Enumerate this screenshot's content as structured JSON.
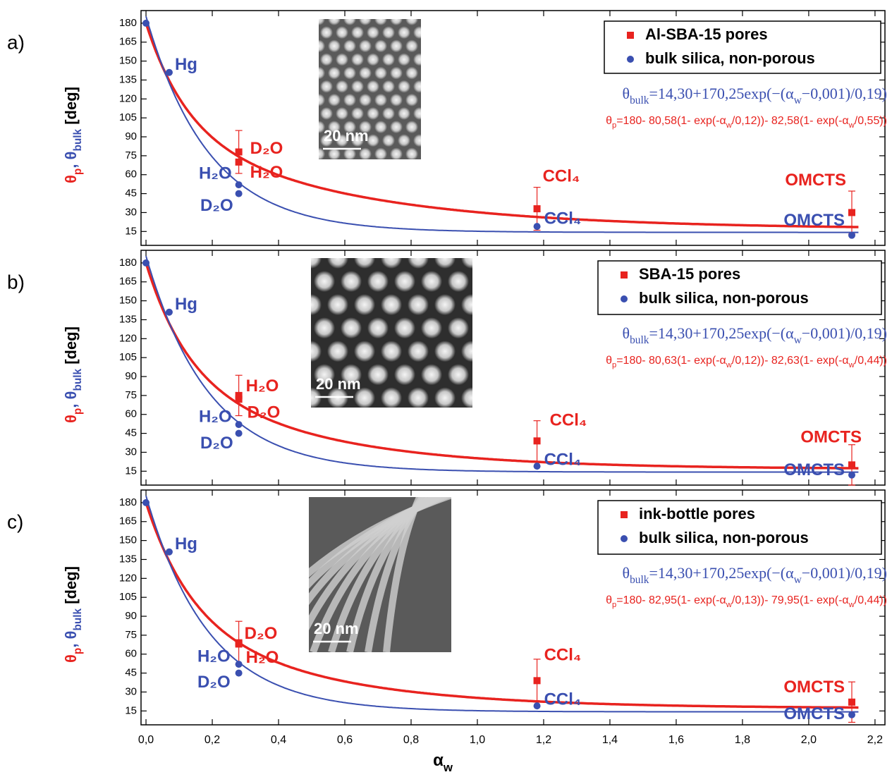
{
  "chart_data": [
    {
      "type": "scatter",
      "panel_label": "a)",
      "inset_label": "20 nm",
      "y_label": [
        {
          "text": "θ",
          "color": "#e8231f"
        },
        {
          "text": "p",
          "color": "#e8231f",
          "sub": true
        },
        {
          "text": ", θ",
          "color": "#3a4fb0"
        },
        {
          "text": "bulk",
          "color": "#3a4fb0",
          "sub": true
        },
        {
          "text": " [deg]",
          "color": "#000000"
        }
      ],
      "xlim": [
        -0.015,
        2.23
      ],
      "ylim": [
        4,
        190
      ],
      "yticks": [
        15,
        30,
        45,
        60,
        75,
        90,
        105,
        120,
        135,
        150,
        165,
        180
      ],
      "series": [
        {
          "name": "Al-SBA-15 pores",
          "color": "#e8231f",
          "marker": "square",
          "x": [
            0.28,
            0.28,
            1.18,
            2.13
          ],
          "values": [
            78,
            70,
            33,
            30
          ],
          "errors": [
            17,
            null,
            17,
            17
          ],
          "point_labels": [
            "D₂O",
            "H₂O",
            "CCl₄",
            "OMCTS"
          ],
          "formula": [
            "θ",
            {
              "text": "p",
              "sub": true
            },
            "=",
            180,
            "- ",
            {
              "value": 80.58,
              "label": "80,58"
            },
            "(1- exp(-α",
            {
              "text": "w",
              "sub": true
            },
            "/",
            {
              "value": 0.12,
              "label": "0,12"
            },
            "))- ",
            {
              "value": 82.58,
              "label": "82,58"
            },
            "(1- exp(-α",
            {
              "text": "w",
              "sub": true
            },
            "/",
            {
              "value": 0.55,
              "label": "0,55"
            },
            "))"
          ]
        },
        {
          "name": "bulk silica, non-porous",
          "color": "#3a4fb0",
          "marker": "circle",
          "x": [
            0.0,
            0.07,
            0.28,
            0.28,
            1.18,
            2.13
          ],
          "values": [
            180,
            141,
            52,
            45,
            19,
            12
          ],
          "point_labels": [
            null,
            "Hg",
            "H₂O",
            "D₂O",
            "CCl₄",
            "OMCTS"
          ],
          "formula": [
            "θ",
            {
              "text": "bulk",
              "sub": true
            },
            "=",
            {
              "value": 14.3,
              "label": "14,30"
            },
            "+",
            {
              "value": 170.25,
              "label": "170,25"
            },
            "exp(−(α",
            {
              "text": "w",
              "sub": true
            },
            "−",
            {
              "value": 0.001,
              "label": "0,001"
            },
            ")/",
            {
              "value": 0.19,
              "label": "0,19"
            },
            ")"
          ]
        }
      ]
    },
    {
      "type": "scatter",
      "panel_label": "b)",
      "inset_label": "20 nm",
      "y_label": [
        {
          "text": "θ",
          "color": "#e8231f"
        },
        {
          "text": "p",
          "color": "#e8231f",
          "sub": true
        },
        {
          "text": ", θ",
          "color": "#3a4fb0"
        },
        {
          "text": "bulk",
          "color": "#3a4fb0",
          "sub": true
        },
        {
          "text": " [deg]",
          "color": "#000000"
        }
      ],
      "xlim": [
        -0.015,
        2.23
      ],
      "ylim": [
        4,
        190
      ],
      "yticks": [
        15,
        30,
        45,
        60,
        75,
        90,
        105,
        120,
        135,
        150,
        165,
        180
      ],
      "series": [
        {
          "name": "SBA-15 pores",
          "color": "#e8231f",
          "marker": "square",
          "x": [
            0.28,
            0.28,
            1.18,
            2.13
          ],
          "values": [
            75,
            72,
            39,
            20
          ],
          "errors": [
            16,
            null,
            16,
            16
          ],
          "point_labels": [
            "H₂O",
            "D₂O",
            "CCl₄",
            "OMCTS"
          ],
          "formula": [
            "θ",
            {
              "text": "p",
              "sub": true
            },
            "=",
            180,
            "- ",
            {
              "value": 80.63,
              "label": "80,63"
            },
            "(1- exp(-α",
            {
              "text": "w",
              "sub": true
            },
            "/",
            {
              "value": 0.12,
              "label": "0,12"
            },
            "))- ",
            {
              "value": 82.63,
              "label": "82,63"
            },
            "(1- exp(-α",
            {
              "text": "w",
              "sub": true
            },
            "/",
            {
              "value": 0.44,
              "label": "0,44"
            },
            "))"
          ]
        },
        {
          "name": "bulk silica, non-porous",
          "color": "#3a4fb0",
          "marker": "circle",
          "x": [
            0.0,
            0.07,
            0.28,
            0.28,
            1.18,
            2.13
          ],
          "values": [
            180,
            141,
            52,
            45,
            19,
            12
          ],
          "point_labels": [
            null,
            "Hg",
            "H₂O",
            "D₂O",
            "CCl₄",
            "OMCTS"
          ],
          "formula": [
            "θ",
            {
              "text": "bulk",
              "sub": true
            },
            "=",
            {
              "value": 14.3,
              "label": "14,30"
            },
            "+",
            {
              "value": 170.25,
              "label": "170,25"
            },
            "exp(−(α",
            {
              "text": "w",
              "sub": true
            },
            "−",
            {
              "value": 0.001,
              "label": "0,001"
            },
            ")/",
            {
              "value": 0.19,
              "label": "0,19"
            },
            ")"
          ]
        }
      ]
    },
    {
      "type": "scatter",
      "panel_label": "c)",
      "inset_label": "20 nm",
      "y_label": [
        {
          "text": "θ",
          "color": "#e8231f"
        },
        {
          "text": "p",
          "color": "#e8231f",
          "sub": true
        },
        {
          "text": ", θ",
          "color": "#3a4fb0"
        },
        {
          "text": "bulk",
          "color": "#3a4fb0",
          "sub": true
        },
        {
          "text": " [deg]",
          "color": "#000000"
        }
      ],
      "x_label": [
        {
          "text": "α"
        },
        {
          "text": "w",
          "sub": true
        }
      ],
      "xlim": [
        -0.015,
        2.23
      ],
      "ylim": [
        4,
        190
      ],
      "yticks": [
        15,
        30,
        45,
        60,
        75,
        90,
        105,
        120,
        135,
        150,
        165,
        180
      ],
      "xticks": [
        {
          "value": 0,
          "label": "0,0"
        },
        {
          "value": 0.2,
          "label": "0,2"
        },
        {
          "value": 0.4,
          "label": "0,4"
        },
        {
          "value": 0.6,
          "label": "0,6"
        },
        {
          "value": 0.8,
          "label": "0,8"
        },
        {
          "value": 1.0,
          "label": "1,0"
        },
        {
          "value": 1.2,
          "label": "1,2"
        },
        {
          "value": 1.4,
          "label": "1,4"
        },
        {
          "value": 1.6,
          "label": "1,6"
        },
        {
          "value": 1.8,
          "label": "1,8"
        },
        {
          "value": 2.0,
          "label": "2,0"
        },
        {
          "value": 2.2,
          "label": "2,2"
        }
      ],
      "series": [
        {
          "name": "ink-bottle pores",
          "color": "#e8231f",
          "marker": "square",
          "x": [
            0.28,
            0.28,
            1.18,
            2.13
          ],
          "values": [
            69,
            68,
            39,
            22
          ],
          "errors": [
            17,
            null,
            17,
            16
          ],
          "point_labels": [
            "D₂O",
            "H₂O",
            "CCl₄",
            "OMCTS"
          ],
          "formula": [
            "θ",
            {
              "text": "p",
              "sub": true
            },
            "=",
            180,
            "- ",
            {
              "value": 82.95,
              "label": "82,95"
            },
            "(1- exp(-α",
            {
              "text": "w",
              "sub": true
            },
            "/",
            {
              "value": 0.13,
              "label": "0,13"
            },
            "))- ",
            {
              "value": 79.95,
              "label": "79,95"
            },
            "(1- exp(-α",
            {
              "text": "w",
              "sub": true
            },
            "/",
            {
              "value": 0.44,
              "label": "0,44"
            },
            "))"
          ]
        },
        {
          "name": "bulk silica, non-porous",
          "color": "#3a4fb0",
          "marker": "circle",
          "x": [
            0.0,
            0.07,
            0.28,
            0.28,
            1.18,
            2.13
          ],
          "values": [
            180,
            141,
            52,
            45,
            19,
            12
          ],
          "point_labels": [
            null,
            "Hg",
            "H₂O",
            "D₂O",
            "CCl₄",
            "OMCTS"
          ],
          "formula": [
            "θ",
            {
              "text": "bulk",
              "sub": true
            },
            "=",
            {
              "value": 14.3,
              "label": "14,30"
            },
            "+",
            {
              "value": 170.25,
              "label": "170,25"
            },
            "exp(−(α",
            {
              "text": "w",
              "sub": true
            },
            "−",
            {
              "value": 0.001,
              "label": "0,001"
            },
            ")/",
            {
              "value": 0.19,
              "label": "0,19"
            },
            ")"
          ]
        }
      ]
    }
  ]
}
